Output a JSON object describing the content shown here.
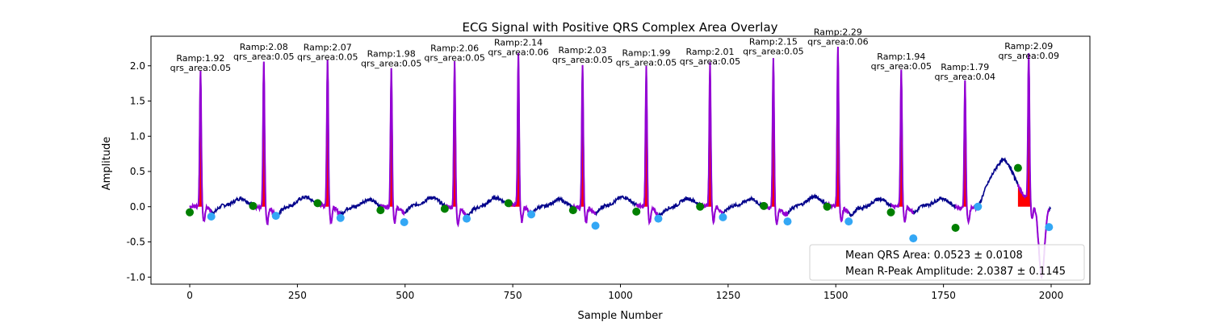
{
  "chart_data": {
    "type": "line",
    "title": "ECG Signal with Positive QRS Complex Area Overlay",
    "xlabel": "Sample Number",
    "ylabel": "Amplitude",
    "xlim": [
      -90,
      2090
    ],
    "ylim": [
      -1.1,
      2.42
    ],
    "xticks": [
      0,
      250,
      500,
      750,
      1000,
      1250,
      1500,
      1750,
      2000
    ],
    "yticks": [
      -1.0,
      -0.5,
      0.0,
      0.5,
      1.0,
      1.5,
      2.0
    ],
    "grid": false,
    "legend_position": "lower-right",
    "legend": [
      "Mean QRS Area: 0.0523 ± 0.0108",
      "Mean R-Peak Amplitude: 2.0387 ± 0.1145"
    ],
    "colors": {
      "signal": "#00008b",
      "qrs_segment": "#9400d3",
      "qrs_area": "#ff0000",
      "onset_marker": "#007f00",
      "offset_marker": "#33a7f5"
    },
    "beats": [
      {
        "r_x": 25,
        "r_amp": 1.92,
        "qrs_area": 0.05,
        "label": [
          "Ramp:1.92",
          "qrs_area:0.05"
        ],
        "onset": [
          0,
          -0.08
        ],
        "offset": [
          50,
          -0.14
        ]
      },
      {
        "r_x": 172,
        "r_amp": 2.08,
        "qrs_area": 0.05,
        "label": [
          "Ramp:2.08",
          "qrs_area:0.05"
        ],
        "onset": [
          147,
          0.01
        ],
        "offset": [
          200,
          -0.13
        ]
      },
      {
        "r_x": 320,
        "r_amp": 2.07,
        "qrs_area": 0.05,
        "label": [
          "Ramp:2.07",
          "qrs_area:0.05"
        ],
        "onset": [
          297,
          0.05
        ],
        "offset": [
          350,
          -0.16
        ]
      },
      {
        "r_x": 468,
        "r_amp": 1.98,
        "qrs_area": 0.05,
        "label": [
          "Ramp:1.98",
          "qrs_area:0.05"
        ],
        "onset": [
          443,
          -0.05
        ],
        "offset": [
          498,
          -0.22
        ]
      },
      {
        "r_x": 615,
        "r_amp": 2.06,
        "qrs_area": 0.05,
        "label": [
          "Ramp:2.06",
          "qrs_area:0.05"
        ],
        "onset": [
          592,
          -0.03
        ],
        "offset": [
          643,
          -0.17
        ]
      },
      {
        "r_x": 763,
        "r_amp": 2.14,
        "qrs_area": 0.06,
        "label": [
          "Ramp:2.14",
          "qrs_area:0.06"
        ],
        "onset": [
          740,
          0.05
        ],
        "offset": [
          793,
          -0.11
        ]
      },
      {
        "r_x": 912,
        "r_amp": 2.03,
        "qrs_area": 0.05,
        "label": [
          "Ramp:2.03",
          "qrs_area:0.05"
        ],
        "onset": [
          890,
          -0.05
        ],
        "offset": [
          942,
          -0.27
        ]
      },
      {
        "r_x": 1060,
        "r_amp": 1.99,
        "qrs_area": 0.05,
        "label": [
          "Ramp:1.99",
          "qrs_area:0.05"
        ],
        "onset": [
          1037,
          -0.07
        ],
        "offset": [
          1088,
          -0.17
        ]
      },
      {
        "r_x": 1208,
        "r_amp": 2.01,
        "qrs_area": 0.05,
        "label": [
          "Ramp:2.01",
          "qrs_area:0.05"
        ],
        "onset": [
          1185,
          0.0
        ],
        "offset": [
          1238,
          -0.15
        ]
      },
      {
        "r_x": 1355,
        "r_amp": 2.15,
        "qrs_area": 0.05,
        "label": [
          "Ramp:2.15",
          "qrs_area:0.05"
        ],
        "onset": [
          1333,
          0.01
        ],
        "offset": [
          1388,
          -0.21
        ]
      },
      {
        "r_x": 1505,
        "r_amp": 2.29,
        "qrs_area": 0.06,
        "label": [
          "Ramp:2.29",
          "qrs_area:0.06"
        ],
        "onset": [
          1480,
          0.0
        ],
        "offset": [
          1530,
          -0.21
        ]
      },
      {
        "r_x": 1652,
        "r_amp": 1.94,
        "qrs_area": 0.05,
        "label": [
          "Ramp:1.94",
          "qrs_area:0.05"
        ],
        "onset": [
          1628,
          -0.08
        ],
        "offset": [
          1680,
          -0.45
        ]
      },
      {
        "r_x": 1800,
        "r_amp": 1.79,
        "qrs_area": 0.04,
        "label": [
          "Ramp:1.79",
          "qrs_area:0.04"
        ],
        "onset": [
          1778,
          -0.3
        ],
        "offset": [
          1830,
          0.0
        ]
      },
      {
        "r_x": 1948,
        "r_amp": 2.09,
        "qrs_area": 0.09,
        "label": [
          "Ramp:2.09",
          "qrs_area:0.09"
        ],
        "onset": [
          1923,
          0.55
        ],
        "offset": [
          1995,
          -0.29
        ]
      }
    ]
  }
}
